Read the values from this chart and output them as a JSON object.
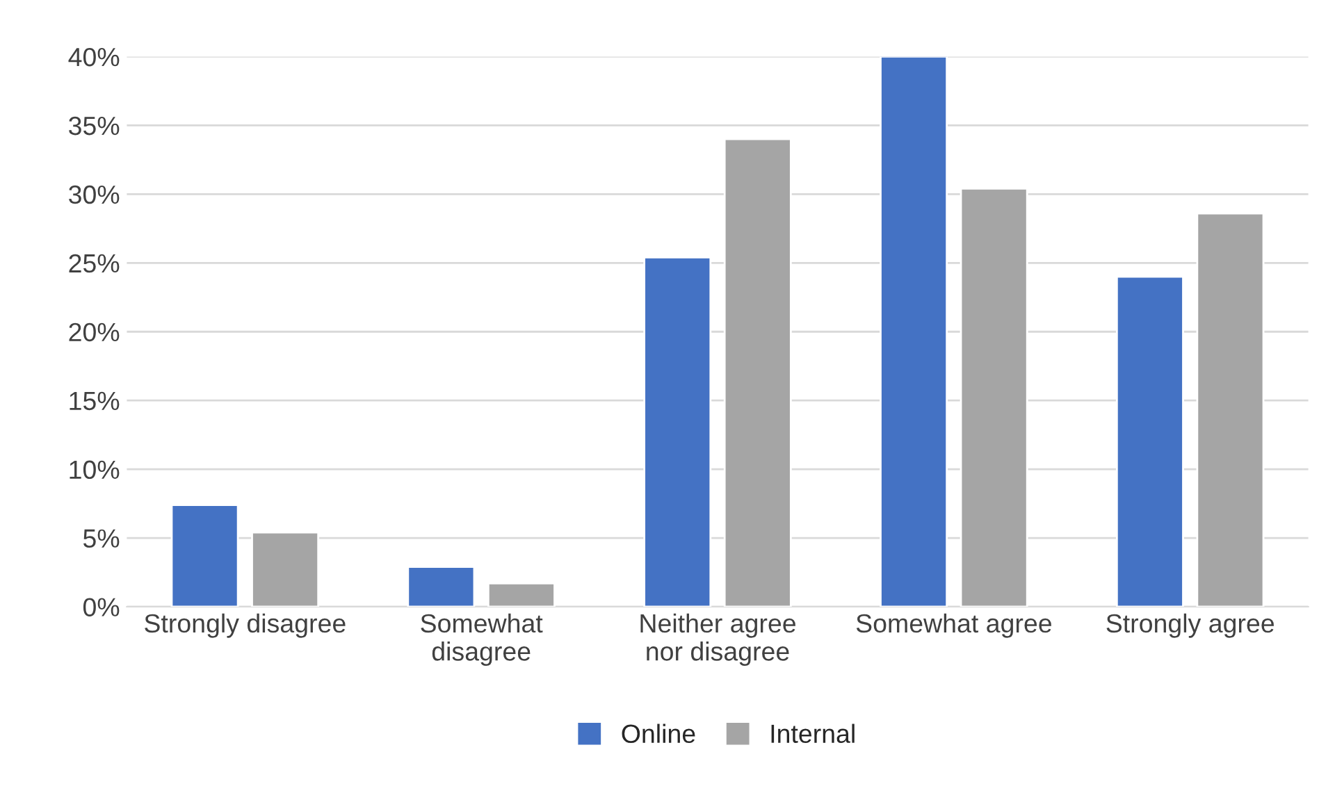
{
  "chart_data": {
    "type": "bar",
    "categories": [
      "Strongly disagree",
      "Somewhat\ndisagree",
      "Neither agree\nnor disagree",
      "Somewhat agree",
      "Strongly agree"
    ],
    "series": [
      {
        "name": "Online",
        "color": "#4472c4",
        "values": [
          7.4,
          2.9,
          25.4,
          40.0,
          24.0
        ]
      },
      {
        "name": "Internal",
        "color": "#a5a5a5",
        "values": [
          5.4,
          1.7,
          34.0,
          30.4,
          28.6
        ]
      }
    ],
    "ylim": [
      0,
      40
    ],
    "yticks": [
      {
        "value": 0,
        "label": "0%"
      },
      {
        "value": 5,
        "label": "5%"
      },
      {
        "value": 10,
        "label": "10%"
      },
      {
        "value": 15,
        "label": "15%"
      },
      {
        "value": 20,
        "label": "20%"
      },
      {
        "value": 25,
        "label": "25%"
      },
      {
        "value": 30,
        "label": "30%"
      },
      {
        "value": 35,
        "label": "35%"
      },
      {
        "value": 40,
        "label": "40%"
      }
    ],
    "grid": "y",
    "legend": "bottom"
  }
}
